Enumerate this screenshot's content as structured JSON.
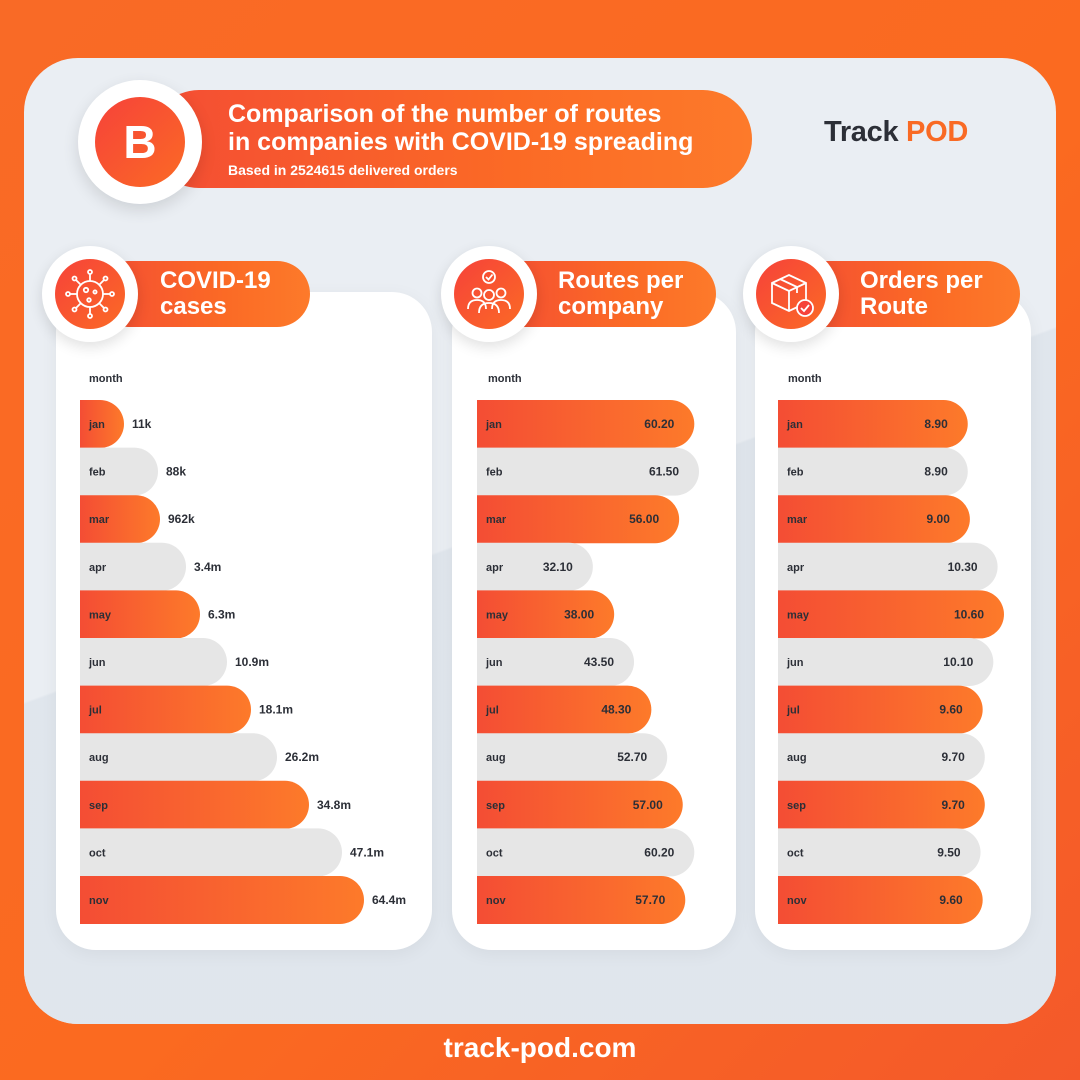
{
  "header": {
    "badge_letter": "B",
    "title_line1": "Comparison of the number of routes",
    "title_line2": "in companies with COVID-19 spreading",
    "subtitle": "Based in 2524615 delivered orders"
  },
  "logo": {
    "part1": "Track ",
    "part2": "POD"
  },
  "footer": {
    "url": "track-pod.com"
  },
  "colors": {
    "accent_start": "#f44d34",
    "accent_end": "#fd7a2a",
    "bar_grey": "#e6e6e6",
    "text_dark": "#2c2f37"
  },
  "chart_data": [
    {
      "type": "bar",
      "orientation": "horizontal",
      "title_line1": "COVID-19",
      "title_line2": "cases",
      "icon": "virus-icon",
      "xlabel": "",
      "ylabel": "month",
      "categories": [
        "jan",
        "feb",
        "mar",
        "apr",
        "may",
        "jun",
        "jul",
        "aug",
        "sep",
        "oct",
        "nov"
      ],
      "values": [
        11000,
        88000,
        962000,
        3400000,
        6300000,
        10900000,
        18100000,
        26200000,
        34800000,
        47100000,
        64400000
      ],
      "value_labels": [
        "11k",
        "88k",
        "962k",
        "3.4m",
        "6.3m",
        "10.9m",
        "18.1m",
        "26.2m",
        "34.8m",
        "47.1m",
        "64.4m"
      ],
      "axis_scale": "non-linear"
    },
    {
      "type": "bar",
      "orientation": "horizontal",
      "title_line1": "Routes per",
      "title_line2": "company",
      "icon": "team-check-icon",
      "xlabel": "",
      "ylabel": "month",
      "categories": [
        "jan",
        "feb",
        "mar",
        "apr",
        "may",
        "jun",
        "jul",
        "aug",
        "sep",
        "oct",
        "nov"
      ],
      "values": [
        60.2,
        61.5,
        56.0,
        32.1,
        38.0,
        43.5,
        48.3,
        52.7,
        57.0,
        60.2,
        57.7
      ],
      "value_labels": [
        "60.20",
        "61.50",
        "56.00",
        "32.10",
        "38.00",
        "43.50",
        "48.30",
        "52.70",
        "57.00",
        "60.20",
        "57.70"
      ]
    },
    {
      "type": "bar",
      "orientation": "horizontal",
      "title_line1": "Orders per",
      "title_line2": "Route",
      "icon": "package-check-icon",
      "xlabel": "",
      "ylabel": "month",
      "categories": [
        "jan",
        "feb",
        "mar",
        "apr",
        "may",
        "jun",
        "jul",
        "aug",
        "sep",
        "oct",
        "nov"
      ],
      "values": [
        8.9,
        8.9,
        9.0,
        10.3,
        10.6,
        10.1,
        9.6,
        9.7,
        9.7,
        9.5,
        9.6
      ],
      "value_labels": [
        "8.90",
        "8.90",
        "9.00",
        "10.30",
        "10.60",
        "10.10",
        "9.60",
        "9.70",
        "9.70",
        "9.50",
        "9.60"
      ]
    }
  ]
}
